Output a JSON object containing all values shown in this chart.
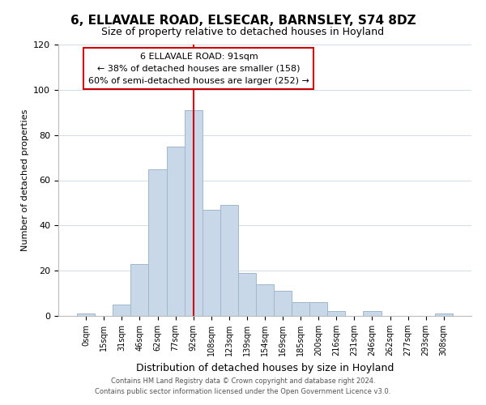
{
  "title": "6, ELLAVALE ROAD, ELSECAR, BARNSLEY, S74 8DZ",
  "subtitle": "Size of property relative to detached houses in Hoyland",
  "xlabel": "Distribution of detached houses by size in Hoyland",
  "ylabel": "Number of detached properties",
  "footer_line1": "Contains HM Land Registry data © Crown copyright and database right 2024.",
  "footer_line2": "Contains public sector information licensed under the Open Government Licence v3.0.",
  "bar_labels": [
    "0sqm",
    "15sqm",
    "31sqm",
    "46sqm",
    "62sqm",
    "77sqm",
    "92sqm",
    "108sqm",
    "123sqm",
    "139sqm",
    "154sqm",
    "169sqm",
    "185sqm",
    "200sqm",
    "216sqm",
    "231sqm",
    "246sqm",
    "262sqm",
    "277sqm",
    "293sqm",
    "308sqm"
  ],
  "bar_heights": [
    1,
    0,
    5,
    23,
    65,
    75,
    91,
    47,
    49,
    19,
    14,
    11,
    6,
    6,
    2,
    0,
    2,
    0,
    0,
    0,
    1
  ],
  "bar_color": "#c8d8e8",
  "bar_edge_color": "#a0b8cc",
  "vline_x": 6,
  "vline_color": "#cc0000",
  "ylim": [
    0,
    120
  ],
  "yticks": [
    0,
    20,
    40,
    60,
    80,
    100,
    120
  ],
  "annotation_title": "6 ELLAVALE ROAD: 91sqm",
  "annotation_line1": "← 38% of detached houses are smaller (158)",
  "annotation_line2": "60% of semi-detached houses are larger (252) →",
  "annotation_box_color": "#ffffff",
  "annotation_box_edge_color": "#cc0000"
}
